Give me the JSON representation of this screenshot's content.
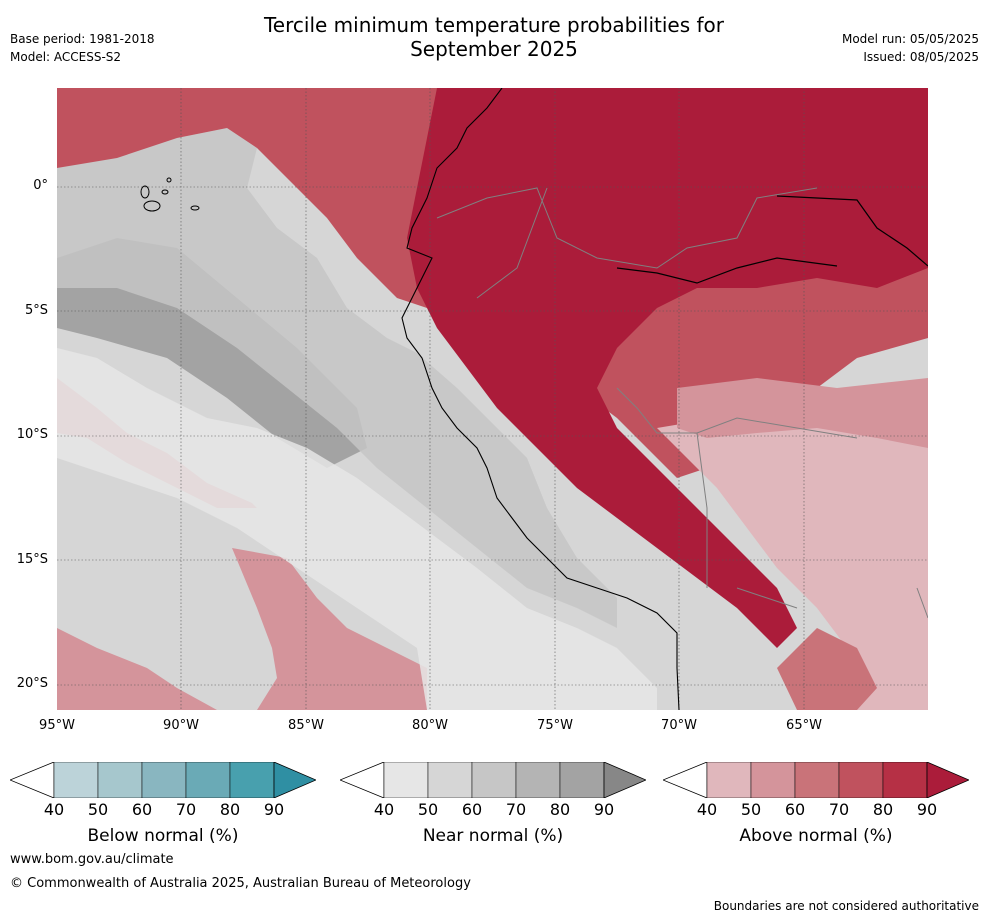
{
  "title_line1": "Tercile minimum temperature probabilities for",
  "title_line2": "September 2025",
  "meta_left": [
    "Base period: 1981-2018",
    "Model: ACCESS-S2"
  ],
  "meta_right": [
    "Model run: 05/05/2025",
    "Issued: 08/05/2025"
  ],
  "lat_labels": [
    "0°",
    "5°S",
    "10°S",
    "15°S",
    "20°S"
  ],
  "lon_labels": [
    "95°W",
    "90°W",
    "85°W",
    "80°W",
    "75°W",
    "70°W",
    "65°W"
  ],
  "colorbars": [
    {
      "title": "Below normal (%)",
      "ticks": [
        "40",
        "50",
        "60",
        "70",
        "80",
        "90"
      ],
      "colors": [
        "#bcd3d9",
        "#a6c7cd",
        "#89b6c0",
        "#6aaab6",
        "#48a0ae",
        "#2f8fa3"
      ]
    },
    {
      "title": "Near normal (%)",
      "ticks": [
        "40",
        "50",
        "60",
        "70",
        "80",
        "90"
      ],
      "colors": [
        "#e6e6e6",
        "#d6d6d6",
        "#c6c6c6",
        "#b4b4b4",
        "#a3a3a3",
        "#878787"
      ]
    },
    {
      "title": "Above normal (%)",
      "ticks": [
        "40",
        "50",
        "60",
        "70",
        "80",
        "90"
      ],
      "colors": [
        "#e0b7bc",
        "#d4949b",
        "#c97379",
        "#c0525e",
        "#b63045",
        "#ab1c3a"
      ]
    }
  ],
  "footer_url": "www.bom.gov.au/climate",
  "footer_copyright": "© Commonwealth of Australia 2025, Australian Bureau of Meteorology",
  "footer_note": "Boundaries are not considered authoritative"
}
